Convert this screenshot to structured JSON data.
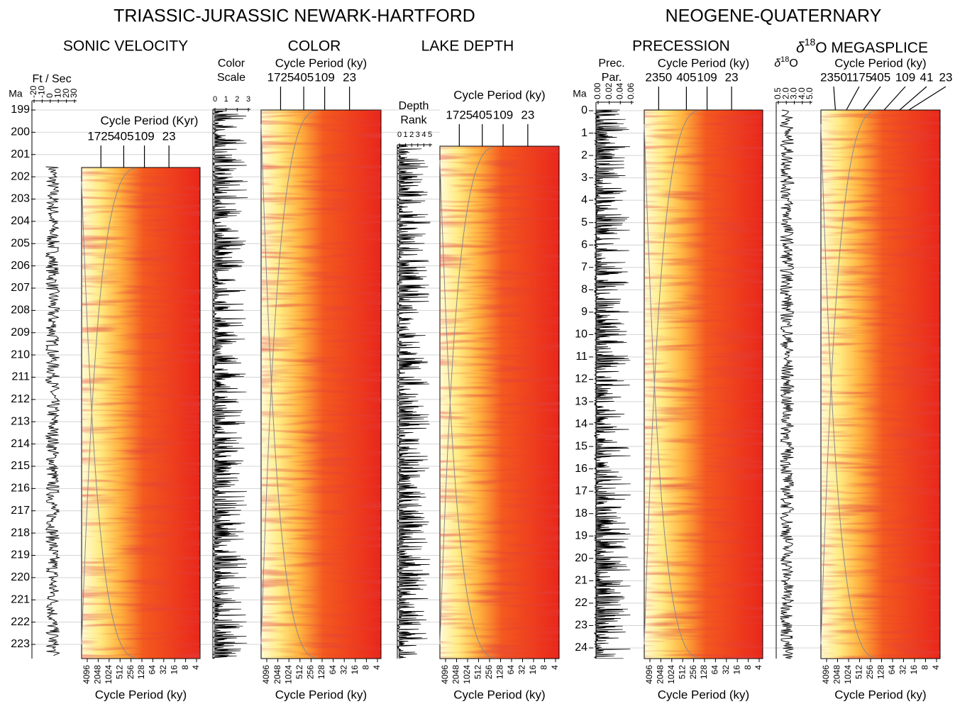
{
  "titles": [
    "TRIASSIC-JURASSIC NEWARK-HARTFORD",
    "NEOGENE-QUATERNARY"
  ],
  "panel_titles": [
    "SONIC VELOCITY",
    "COLOR",
    "LAKE DEPTH",
    "PRECESSION"
  ],
  "d18o_title": {
    "symbol": "δ",
    "sup": "18",
    "text": "O MEGASPLICE"
  },
  "age_axes": [
    {
      "label": "Ma",
      "ticks": [
        199,
        200,
        201,
        202,
        203,
        204,
        205,
        206,
        207,
        208,
        209,
        210,
        211,
        212,
        213,
        214,
        215,
        216,
        217,
        218,
        219,
        220,
        221,
        222,
        223
      ]
    },
    {
      "label": "Ma",
      "ticks": [
        0,
        1,
        2,
        3,
        4,
        5,
        6,
        7,
        8,
        9,
        10,
        11,
        12,
        13,
        14,
        15,
        16,
        17,
        18,
        19,
        20,
        21,
        22,
        23,
        24
      ]
    }
  ],
  "traces": [
    {
      "header": [
        "Ft / Sec"
      ],
      "ticks": [
        -20,
        -10,
        0,
        10,
        20,
        30
      ]
    },
    {
      "header": [
        "Color",
        "Scale"
      ],
      "ticks": [
        0,
        1,
        2,
        3
      ]
    },
    {
      "header": [
        "Depth",
        "Rank"
      ],
      "ticks": [
        0,
        1,
        2,
        3,
        4,
        5
      ]
    },
    {
      "header": [
        "Prec.",
        "Par."
      ],
      "ticks": [
        "0.00",
        "0.02",
        "0.04",
        "0.06"
      ]
    },
    {
      "header_symbol": "δ",
      "header_sup": "18",
      "header_text": "O",
      "ticks": [
        "0.5",
        "2.0",
        "3.0",
        "4.0",
        "5.0"
      ]
    }
  ],
  "wavelets": [
    {
      "top_label": "Cycle Period (Kyr)",
      "top_ticks": [
        1725,
        405,
        109,
        23
      ]
    },
    {
      "top_label": "Cycle Period (ky)",
      "top_ticks": [
        1725,
        405,
        109,
        23
      ]
    },
    {
      "top_label": "Cycle Period (ky)",
      "top_ticks": [
        1725,
        405,
        109,
        23
      ]
    },
    {
      "top_label": "Cycle Period (ky)",
      "top_ticks": [
        2350,
        405,
        109,
        23
      ]
    },
    {
      "top_label": "Cycle Period (ky)",
      "top_ticks": [
        2350,
        1175,
        405,
        109,
        41,
        23
      ]
    }
  ],
  "bottom_axis": {
    "ticks": [
      4096,
      2048,
      1024,
      512,
      256,
      128,
      64,
      32,
      16,
      8,
      4
    ],
    "label": "Cycle Period (ky)"
  }
}
